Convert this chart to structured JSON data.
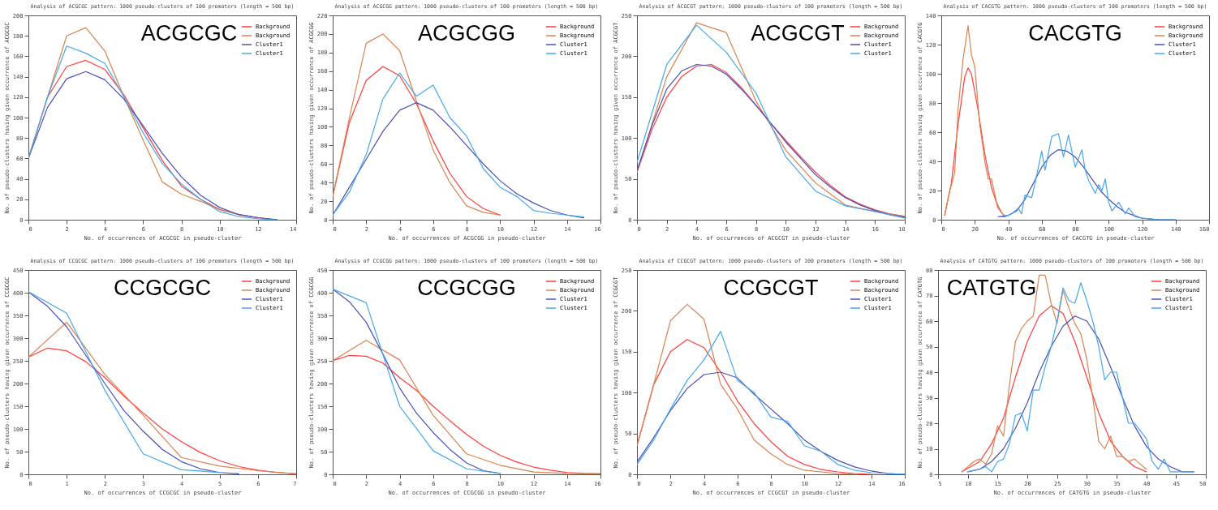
{
  "chart_data": [
    {
      "type": "line",
      "title": "Analysis of ACGCGC pattern: 1000 pseudo-clusters of 100 promoters (length = 500 bp)",
      "xlabel": "No. of occurrences of ACGCGC in pseudo-cluster",
      "ylabel": "No. of pseudo-clusters having given occurrence of ACGCGC",
      "annotations": [
        "ACGCGC"
      ],
      "xlim": [
        0,
        14
      ],
      "xticks": [
        0,
        2,
        4,
        6,
        8,
        10,
        12,
        14
      ],
      "ylim": [
        0,
        200
      ],
      "yticks": [
        0,
        20,
        40,
        60,
        80,
        100,
        120,
        140,
        160,
        180,
        200
      ],
      "legend": "top right",
      "series": [
        {
          "name": "Background",
          "color": "#ff3b3b",
          "x": [
            0,
            1,
            2,
            3,
            4,
            5,
            6,
            7,
            8,
            9,
            10,
            11,
            12,
            13
          ],
          "values": [
            60,
            120,
            150,
            156,
            147,
            122,
            90,
            58,
            33,
            20,
            10,
            5,
            2,
            0
          ]
        },
        {
          "name": "Background",
          "color": "#d9834f",
          "x": [
            0,
            2,
            3,
            4,
            5,
            6,
            7,
            8,
            9,
            10,
            11,
            12,
            13
          ],
          "values": [
            60,
            180,
            188,
            165,
            120,
            78,
            37,
            25,
            18,
            10,
            5,
            2,
            0
          ]
        },
        {
          "name": "Cluster1",
          "color": "#4a4fb8",
          "x": [
            0,
            1,
            2,
            3,
            4,
            5,
            6,
            7,
            8,
            9,
            10,
            11,
            12,
            13
          ],
          "values": [
            60,
            110,
            138,
            145,
            137,
            118,
            92,
            65,
            42,
            24,
            12,
            5,
            2,
            0
          ]
        },
        {
          "name": "Cluster1",
          "color": "#45a8ee",
          "x": [
            0,
            1,
            2,
            3,
            4,
            5,
            6,
            7,
            8,
            9,
            10,
            11,
            12,
            13
          ],
          "values": [
            60,
            120,
            170,
            163,
            153,
            120,
            85,
            55,
            35,
            20,
            8,
            3,
            1,
            0
          ]
        }
      ]
    },
    {
      "type": "line",
      "title": "Analysis of ACGCGG pattern: 1000 pseudo-clusters of 100 promoters (length = 500 bp)",
      "xlabel": "No. of occurrences of ACGCGG in pseudo-cluster",
      "ylabel": "No. of pseudo-clusters having given occurrence of ACGCGG",
      "annotations": [
        "ACGCGG"
      ],
      "xlim": [
        0,
        16
      ],
      "xticks": [
        0,
        2,
        4,
        6,
        8,
        10,
        12,
        14,
        16
      ],
      "ylim": [
        0,
        220
      ],
      "yticks": [
        0,
        20,
        40,
        60,
        80,
        100,
        120,
        140,
        160,
        180,
        200,
        220
      ],
      "legend": "top right",
      "series": [
        {
          "name": "Background",
          "color": "#ff3b3b",
          "x": [
            0,
            1,
            2,
            3,
            4,
            5,
            6,
            7,
            8,
            9,
            10
          ],
          "values": [
            25,
            105,
            150,
            165,
            155,
            125,
            85,
            50,
            25,
            12,
            5
          ]
        },
        {
          "name": "Background",
          "color": "#d9834f",
          "x": [
            0,
            1,
            2,
            3,
            4,
            5,
            6,
            7,
            8,
            9,
            10
          ],
          "values": [
            25,
            110,
            190,
            200,
            182,
            128,
            75,
            40,
            15,
            8,
            5
          ]
        },
        {
          "name": "Cluster1",
          "color": "#4a4fb8",
          "x": [
            0,
            1,
            2,
            3,
            4,
            5,
            6,
            7,
            8,
            9,
            10,
            11,
            12,
            13,
            14,
            15
          ],
          "values": [
            5,
            35,
            65,
            95,
            118,
            126,
            118,
            100,
            80,
            60,
            42,
            28,
            18,
            10,
            5,
            2
          ]
        },
        {
          "name": "Cluster1",
          "color": "#45a8ee",
          "x": [
            0,
            1,
            2,
            3,
            4,
            5,
            6,
            7,
            8,
            9,
            10,
            11,
            12,
            13,
            14,
            15
          ],
          "values": [
            5,
            30,
            70,
            130,
            158,
            133,
            145,
            110,
            90,
            55,
            35,
            25,
            10,
            7,
            5,
            3
          ]
        }
      ]
    },
    {
      "type": "line",
      "title": "Analysis of ACGCGT pattern: 1000 pseudo-clusters of 100 promoters (length = 500 bp)",
      "xlabel": "No. of occurrences of ACGCGT in pseudo-cluster",
      "ylabel": "No. of pseudo-clusters having given occurrence of ACGCGT",
      "annotations": [
        "ACGCGT"
      ],
      "xlim": [
        0,
        18
      ],
      "xticks": [
        0,
        2,
        4,
        6,
        8,
        10,
        12,
        14,
        16,
        18
      ],
      "ylim": [
        0,
        250
      ],
      "yticks": [
        0,
        50,
        100,
        150,
        200,
        250
      ],
      "legend": "top right",
      "series": [
        {
          "name": "Background",
          "color": "#ff3b3b",
          "x": [
            0,
            1,
            2,
            3,
            4,
            5,
            6,
            7,
            8,
            9,
            10,
            11,
            12,
            13,
            14,
            15,
            16,
            17,
            18
          ],
          "values": [
            58,
            110,
            150,
            175,
            188,
            190,
            180,
            162,
            140,
            118,
            97,
            77,
            58,
            42,
            28,
            19,
            12,
            7,
            4
          ]
        },
        {
          "name": "Background",
          "color": "#d9834f",
          "x": [
            0,
            2,
            4,
            6,
            8,
            10,
            12,
            14,
            16,
            18
          ],
          "values": [
            58,
            175,
            241,
            229,
            145,
            85,
            45,
            18,
            10,
            4
          ]
        },
        {
          "name": "Cluster1",
          "color": "#4a4fb8",
          "x": [
            0,
            1,
            2,
            3,
            4,
            5,
            6,
            7,
            8,
            9,
            10,
            11,
            12,
            13,
            14,
            15,
            16,
            17,
            18
          ],
          "values": [
            60,
            115,
            160,
            182,
            190,
            188,
            178,
            160,
            140,
            118,
            95,
            75,
            55,
            40,
            27,
            18,
            11,
            6,
            3
          ]
        },
        {
          "name": "Cluster1",
          "color": "#45a8ee",
          "x": [
            0,
            2,
            4,
            6,
            8,
            10,
            12,
            14,
            16,
            18
          ],
          "values": [
            70,
            190,
            238,
            205,
            155,
            77,
            35,
            17,
            10,
            2
          ]
        }
      ]
    },
    {
      "type": "line",
      "title": "Analysis of CACGTG pattern: 1000 pseudo-clusters of 100 promoters (length = 500 bp)",
      "xlabel": "No. of occurrences of CACGTG in pseudo-cluster",
      "ylabel": "No. of pseudo-clusters having given occurrence of CACGTG",
      "annotations": [
        "CACGTG"
      ],
      "xlim": [
        0,
        160
      ],
      "xticks": [
        0,
        20,
        40,
        60,
        80,
        100,
        120,
        140,
        160
      ],
      "ylim": [
        0,
        140
      ],
      "yticks": [
        0,
        20,
        40,
        60,
        80,
        100,
        120,
        140
      ],
      "legend": "top right",
      "series": [
        {
          "name": "Background",
          "color": "#ff3b3b",
          "x": [
            2,
            6,
            10,
            14,
            16,
            18,
            22,
            26,
            30,
            34,
            38
          ],
          "values": [
            3,
            25,
            65,
            98,
            104,
            100,
            75,
            45,
            22,
            8,
            2
          ]
        },
        {
          "name": "Background",
          "color": "#d9834f",
          "x": [
            2,
            5,
            8,
            10,
            13,
            16,
            18,
            20,
            23,
            26,
            28,
            30,
            33,
            36,
            38
          ],
          "values": [
            3,
            20,
            32,
            75,
            110,
            133,
            113,
            105,
            65,
            40,
            28,
            28,
            12,
            5,
            2
          ]
        },
        {
          "name": "Cluster1",
          "color": "#4a4fb8",
          "x": [
            34,
            40,
            45,
            50,
            55,
            60,
            65,
            70,
            75,
            80,
            85,
            90,
            95,
            100,
            105,
            110,
            115,
            120,
            130,
            140
          ],
          "values": [
            2,
            3,
            6,
            14,
            25,
            36,
            44,
            48,
            47,
            43,
            36,
            28,
            20,
            14,
            9,
            5,
            3,
            1,
            0,
            0
          ]
        },
        {
          "name": "Cluster1",
          "color": "#45a8ee",
          "x": [
            34,
            38,
            42,
            46,
            48,
            50,
            54,
            56,
            60,
            62,
            66,
            70,
            73,
            76,
            80,
            84,
            86,
            88,
            92,
            94,
            96,
            98,
            100,
            102,
            106,
            110,
            112,
            116,
            120,
            130,
            140
          ],
          "values": [
            2,
            2,
            4,
            8,
            4,
            17,
            15,
            25,
            47,
            34,
            57,
            59,
            43,
            58,
            36,
            48,
            34,
            27,
            18,
            24,
            20,
            28,
            12,
            6,
            12,
            4,
            8,
            2,
            1,
            0,
            0
          ]
        }
      ]
    },
    {
      "type": "line",
      "title": "Analysis of CCGCGC pattern: 1000 pseudo-clusters of 100 promoters (length = 500 bp)",
      "xlabel": "No. of occurrences of CCGCGC in pseudo-cluster",
      "ylabel": "No. of pseudo-clusters having given occurrence of CCGCGC",
      "annotations": [
        "CCGCGC"
      ],
      "xlim": [
        0,
        7
      ],
      "xticks": [
        0,
        1,
        2,
        3,
        4,
        5,
        6,
        7
      ],
      "ylim": [
        0,
        450
      ],
      "yticks": [
        0,
        50,
        100,
        150,
        200,
        250,
        300,
        350,
        400,
        450
      ],
      "legend": "top right",
      "series": [
        {
          "name": "Background",
          "color": "#ff3b3b",
          "x": [
            0,
            0.5,
            1,
            1.5,
            2,
            2.5,
            3,
            3.5,
            4,
            4.5,
            5,
            5.5,
            6,
            6.5,
            7
          ],
          "values": [
            258,
            278,
            272,
            248,
            213,
            172,
            135,
            100,
            72,
            48,
            30,
            17,
            9,
            4,
            1
          ]
        },
        {
          "name": "Background",
          "color": "#d9834f",
          "x": [
            0,
            1,
            2,
            3,
            4,
            5,
            6,
            7
          ],
          "values": [
            258,
            335,
            220,
            130,
            37,
            18,
            8,
            1
          ]
        },
        {
          "name": "Cluster1",
          "color": "#4a4fb8",
          "x": [
            0,
            0.5,
            1,
            1.5,
            2,
            2.5,
            3,
            3.5,
            4,
            4.5,
            5,
            5.5
          ],
          "values": [
            402,
            370,
            325,
            262,
            200,
            140,
            95,
            55,
            28,
            12,
            4,
            1
          ]
        },
        {
          "name": "Cluster1",
          "color": "#45a8ee",
          "x": [
            0,
            1,
            2,
            3,
            4,
            5
          ],
          "values": [
            402,
            355,
            185,
            45,
            10,
            4
          ]
        }
      ]
    },
    {
      "type": "line",
      "title": "Analysis of CCGCGG pattern: 1000 pseudo-clusters of 100 promoters (length = 500 bp)",
      "xlabel": "No. of occurrences of CCGCGG in pseudo-cluster",
      "ylabel": "No. of pseudo-clusters having given occurrence of CCGCGG",
      "annotations": [
        "CCGCGG"
      ],
      "xlim": [
        0,
        16
      ],
      "xticks": [
        0,
        2,
        4,
        6,
        8,
        10,
        12,
        14,
        16
      ],
      "ylim": [
        0,
        450
      ],
      "yticks": [
        0,
        50,
        100,
        150,
        200,
        250,
        300,
        350,
        400,
        450
      ],
      "legend": "top right",
      "series": [
        {
          "name": "Background",
          "color": "#ff3b3b",
          "x": [
            0,
            1,
            2,
            3,
            4,
            5,
            6,
            7,
            8,
            9,
            10,
            11,
            12,
            13,
            14,
            15,
            16
          ],
          "values": [
            250,
            262,
            260,
            245,
            213,
            185,
            150,
            118,
            88,
            62,
            42,
            27,
            16,
            9,
            4,
            2,
            1
          ]
        },
        {
          "name": "Background",
          "color": "#d9834f",
          "x": [
            0,
            2,
            4,
            6,
            8,
            10,
            12,
            14,
            16
          ],
          "values": [
            250,
            295,
            252,
            130,
            45,
            20,
            5,
            2,
            1
          ]
        },
        {
          "name": "Cluster1",
          "color": "#4a4fb8",
          "x": [
            0,
            1,
            2,
            3,
            4,
            5,
            6,
            7,
            8,
            9,
            10
          ],
          "values": [
            408,
            380,
            335,
            265,
            190,
            135,
            92,
            55,
            25,
            8,
            2
          ]
        },
        {
          "name": "Cluster1",
          "color": "#45a8ee",
          "x": [
            0,
            2,
            4,
            6,
            8,
            10
          ],
          "values": [
            408,
            378,
            150,
            52,
            12,
            2
          ]
        }
      ]
    },
    {
      "type": "line",
      "title": "Analysis of CCGCGT pattern: 1000 pseudo-clusters of 100 promoters (length = 500 bp)",
      "xlabel": "No. of occurrences of CCGCGT in pseudo-cluster",
      "ylabel": "No. of pseudo-clusters having given occurrence of CCGCGT",
      "annotations": [
        "CCGCGT"
      ],
      "xlim": [
        0,
        16
      ],
      "xticks": [
        0,
        2,
        4,
        6,
        8,
        10,
        12,
        14,
        16
      ],
      "ylim": [
        0,
        250
      ],
      "yticks": [
        0,
        50,
        100,
        150,
        200,
        250
      ],
      "legend": "top right",
      "series": [
        {
          "name": "Background",
          "color": "#ff3b3b",
          "x": [
            0,
            1,
            2,
            3,
            4,
            5,
            6,
            7,
            8,
            9,
            10,
            11,
            12,
            13,
            14
          ],
          "values": [
            35,
            110,
            150,
            165,
            155,
            125,
            90,
            62,
            40,
            22,
            12,
            6,
            3,
            1,
            0
          ]
        },
        {
          "name": "Background",
          "color": "#d9834f",
          "x": [
            0,
            1,
            2,
            3,
            4,
            5,
            6,
            7,
            8,
            9,
            10,
            11,
            12,
            13
          ],
          "values": [
            35,
            110,
            188,
            208,
            190,
            110,
            80,
            42,
            25,
            12,
            5,
            3,
            1,
            0
          ]
        },
        {
          "name": "Cluster1",
          "color": "#4a4fb8",
          "x": [
            0,
            1,
            2,
            3,
            4,
            5,
            6,
            7,
            8,
            9,
            10,
            11,
            12,
            13,
            14,
            15,
            16
          ],
          "values": [
            15,
            45,
            78,
            105,
            122,
            125,
            118,
            98,
            80,
            62,
            42,
            28,
            17,
            9,
            4,
            1,
            0
          ]
        },
        {
          "name": "Cluster1",
          "color": "#45a8ee",
          "x": [
            0,
            1,
            2,
            3,
            4,
            5,
            6,
            7,
            8,
            9,
            10,
            11,
            12,
            13,
            14,
            15,
            16
          ],
          "values": [
            12,
            42,
            80,
            115,
            140,
            175,
            115,
            100,
            70,
            65,
            35,
            28,
            12,
            5,
            2,
            1,
            0
          ]
        }
      ]
    },
    {
      "type": "line",
      "title": "Analysis of CATGTG pattern: 1000 pseudo-clusters of 100 promoters (length = 500 bp)",
      "xlabel": "No. of occurrences of CATGTG in pseudo-cluster",
      "ylabel": "No. of pseudo-clusters having given occurrence of CATGTG",
      "annotations": [
        "CATGTG"
      ],
      "xlim": [
        5,
        50
      ],
      "xticks": [
        5,
        10,
        15,
        20,
        25,
        30,
        35,
        40,
        45,
        50
      ],
      "ylim": [
        0,
        80
      ],
      "yticks": [
        0,
        10,
        20,
        30,
        40,
        50,
        60,
        70,
        80
      ],
      "legend": "top right",
      "series": [
        {
          "name": "Background",
          "color": "#ff3b3b",
          "x": [
            9,
            12,
            14,
            16,
            18,
            20,
            22,
            24,
            26,
            28,
            30,
            32,
            34,
            36,
            38,
            40
          ],
          "values": [
            1,
            5,
            12,
            22,
            38,
            52,
            62,
            66,
            63,
            52,
            38,
            24,
            13,
            7,
            3,
            1
          ]
        },
        {
          "name": "Background",
          "color": "#d9834f",
          "x": [
            9,
            11,
            12,
            13,
            14,
            15,
            16,
            17,
            18,
            19,
            20,
            21,
            22,
            23,
            24,
            25,
            26,
            27,
            28,
            29,
            30,
            31,
            32,
            33,
            34,
            35,
            36,
            37,
            38,
            39,
            40
          ],
          "values": [
            1,
            5,
            6,
            4,
            8,
            19,
            15,
            35,
            52,
            57,
            60,
            62,
            78,
            78,
            67,
            59,
            72,
            65,
            59,
            55,
            45,
            30,
            13,
            10,
            15,
            7,
            7,
            5,
            6,
            4,
            2
          ]
        },
        {
          "name": "Cluster1",
          "color": "#4a4fb8",
          "x": [
            10,
            12,
            14,
            16,
            18,
            20,
            22,
            24,
            26,
            28,
            30,
            32,
            34,
            36,
            38,
            40,
            42,
            44,
            46,
            48
          ],
          "values": [
            1,
            2,
            5,
            10,
            18,
            28,
            40,
            50,
            58,
            62,
            60,
            53,
            42,
            30,
            19,
            11,
            6,
            3,
            1,
            1
          ]
        },
        {
          "name": "Cluster1",
          "color": "#45a8ee",
          "x": [
            10,
            12,
            13,
            14,
            15,
            16,
            17,
            18,
            19,
            20,
            21,
            22,
            23,
            24,
            25,
            26,
            27,
            28,
            29,
            30,
            31,
            32,
            33,
            34,
            35,
            36,
            37,
            38,
            39,
            40,
            41,
            42,
            43,
            44,
            46,
            48
          ],
          "values": [
            1,
            2,
            3,
            1,
            5,
            6,
            12,
            23,
            24,
            17,
            33,
            33,
            42,
            50,
            60,
            73,
            68,
            67,
            75,
            68,
            60,
            50,
            37,
            40,
            40,
            30,
            20,
            20,
            17,
            14,
            5,
            2,
            6,
            1,
            1,
            1
          ]
        }
      ]
    }
  ]
}
